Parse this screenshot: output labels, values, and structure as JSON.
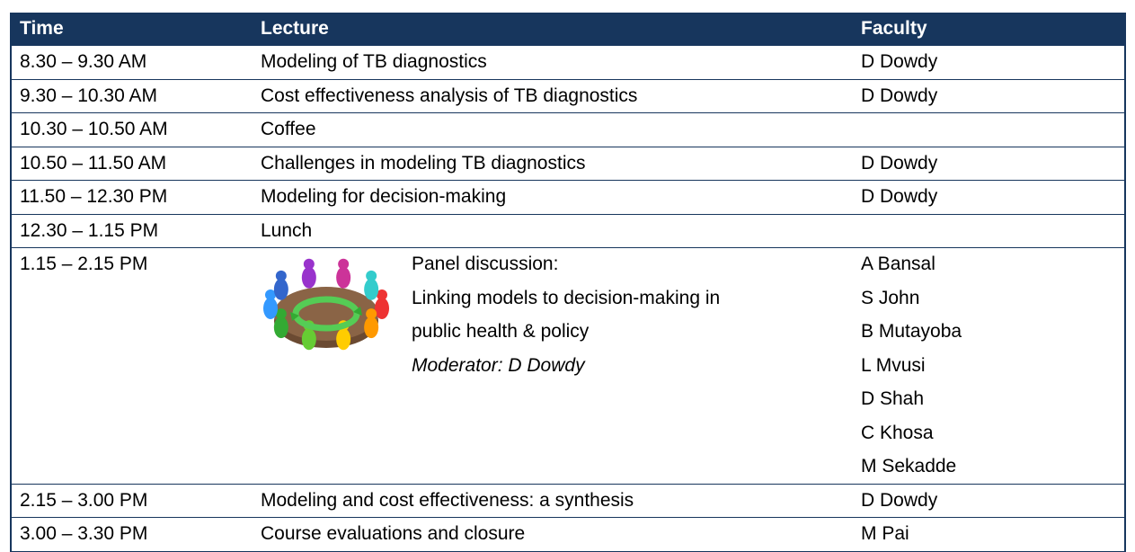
{
  "header": {
    "time": "Time",
    "lecture": "Lecture",
    "faculty": "Faculty"
  },
  "rows": [
    {
      "time": "8.30 – 9.30 AM",
      "lecture": "Modeling of TB diagnostics",
      "faculty": "D Dowdy"
    },
    {
      "time": "9.30 – 10.30 AM",
      "lecture": "Cost effectiveness analysis of TB diagnostics",
      "faculty": "D Dowdy"
    },
    {
      "time": "10.30 – 10.50 AM",
      "lecture": "Coffee"
    },
    {
      "time": "10.50 – 11.50 AM",
      "lecture": "Challenges in modeling TB diagnostics",
      "faculty": "D Dowdy"
    },
    {
      "time": "11.50 – 12.30 PM",
      "lecture": "Modeling for decision-making",
      "faculty": "D Dowdy"
    },
    {
      "time": "12.30 – 1.15 PM",
      "lecture": "Lunch"
    },
    {
      "time": "1.15 – 2.15 PM",
      "lecture_lines": [
        "Panel discussion:",
        "Linking models to decision-making in",
        "public health & policy"
      ],
      "moderator": "Moderator: D Dowdy",
      "faculty_list": [
        "A Bansal",
        "S John",
        "B Mutayoba",
        "L Mvusi",
        "D Shah",
        "C Khosa",
        "M Sekadde"
      ]
    },
    {
      "time": "2.15 – 3.00 PM",
      "lecture": "Modeling and cost effectiveness: a synthesis",
      "faculty": "D Dowdy"
    },
    {
      "time": "3.00 – 3.30 PM",
      "lecture": "Course evaluations and closure",
      "faculty": "M Pai"
    }
  ]
}
